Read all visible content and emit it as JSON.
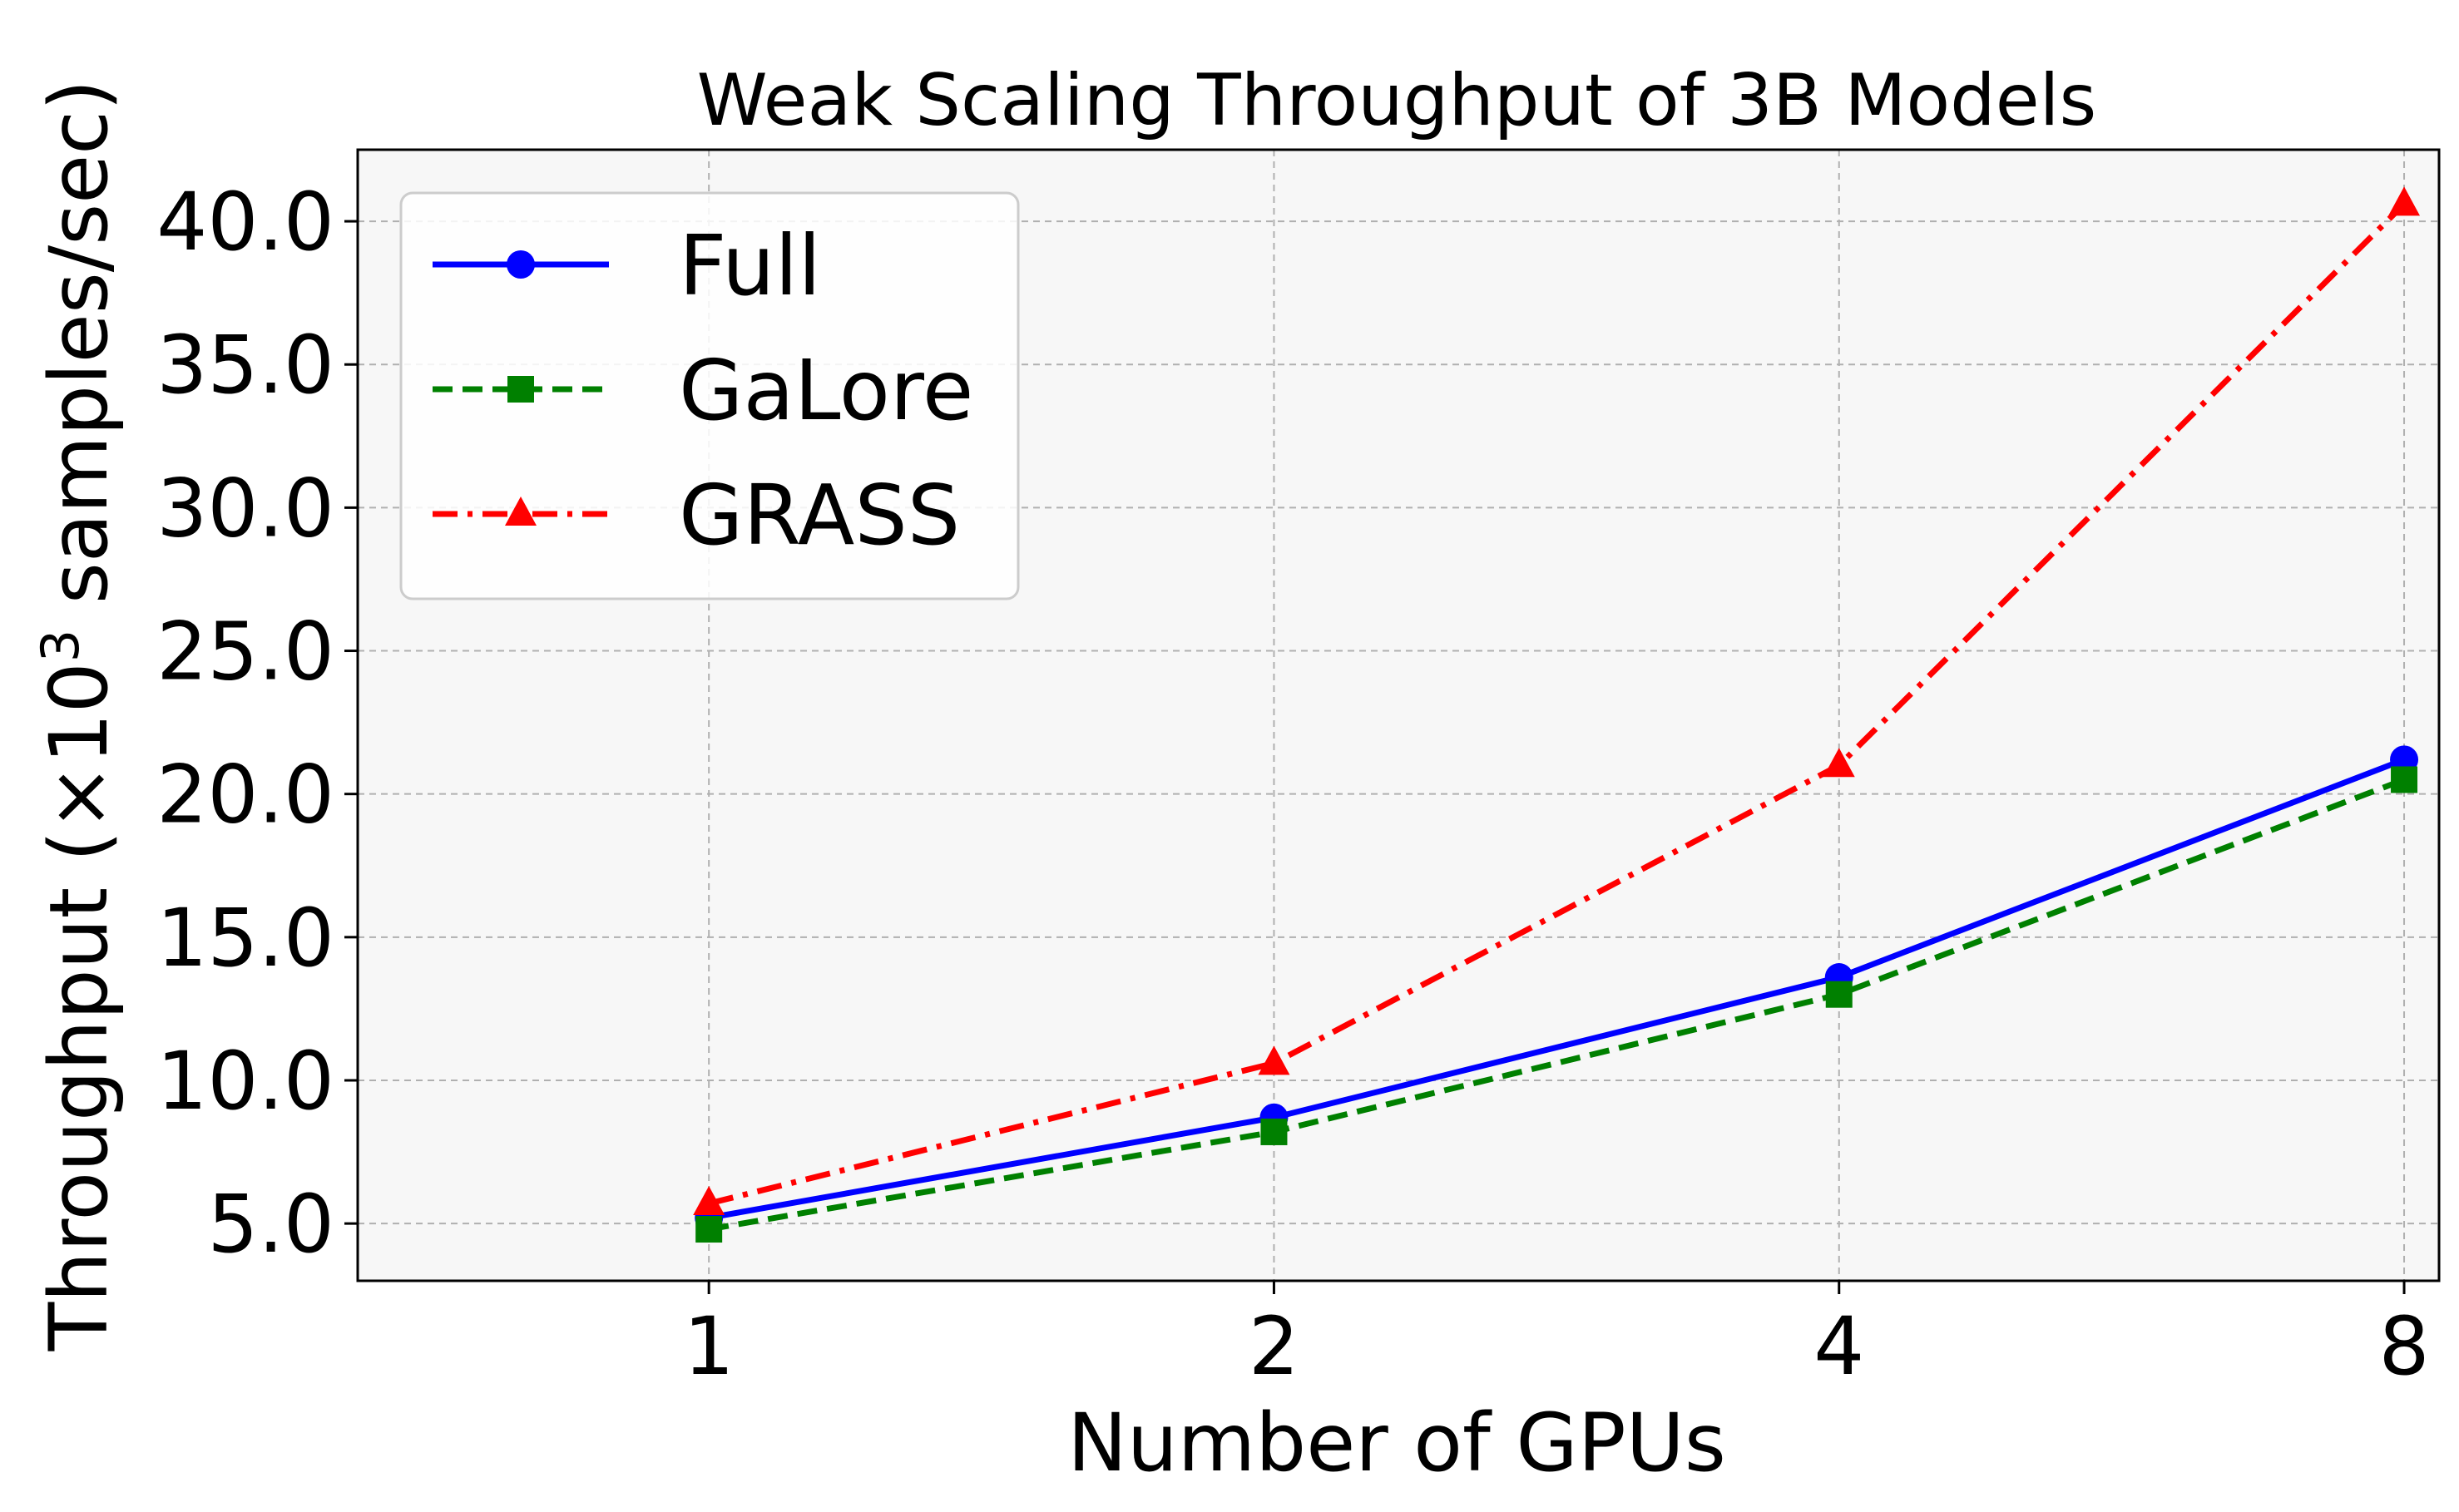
{
  "chart_data": {
    "type": "line",
    "title": "Weak Scaling Throughput of 3B Models",
    "xlabel": "Number of GPUs",
    "ylabel": "Throughput (×10³ samples/sec)",
    "ylabel_parts": {
      "before": "Throughput (×10",
      "superscript": "3",
      "after": " samples/sec)"
    },
    "x": [
      1,
      2,
      4,
      8
    ],
    "x_tick_labels": [
      "1",
      "2",
      "4",
      "8"
    ],
    "y_ticks": [
      5.0,
      10.0,
      15.0,
      20.0,
      25.0,
      30.0,
      35.0,
      40.0
    ],
    "y_tick_labels": [
      "5.0",
      "10.0",
      "15.0",
      "20.0",
      "25.0",
      "30.0",
      "35.0",
      "40.0"
    ],
    "xlim": [
      0.65,
      8.35
    ],
    "ylim": [
      3.0,
      42.5
    ],
    "x_scale": "log2",
    "grid": true,
    "legend_position": "top-left",
    "series": [
      {
        "name": "Full",
        "values": [
          5.2,
          8.7,
          13.6,
          21.2
        ],
        "color": "#0000ff",
        "marker": "circle",
        "linestyle": "solid"
      },
      {
        "name": "GaLore",
        "values": [
          4.8,
          8.2,
          13.0,
          20.5
        ],
        "color": "#008000",
        "marker": "square",
        "linestyle": "dashed"
      },
      {
        "name": "GRASS",
        "values": [
          5.7,
          10.6,
          21.0,
          40.6
        ],
        "color": "#ff0000",
        "marker": "triangle",
        "linestyle": "dashdot"
      }
    ]
  }
}
